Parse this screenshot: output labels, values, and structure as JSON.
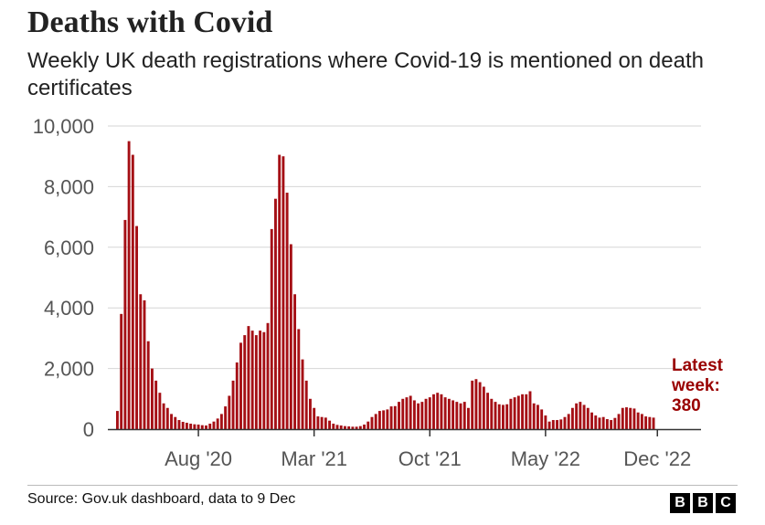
{
  "header": {
    "title": "Deaths with Covid",
    "subtitle": "Weekly UK death registrations where Covid-19 is mentioned on death certificates"
  },
  "footer": {
    "source": "Source: Gov.uk dashboard, data to 9 Dec",
    "logo": [
      "B",
      "B",
      "C"
    ]
  },
  "chart_data": {
    "type": "bar",
    "title": "Deaths with Covid",
    "subtitle": "Weekly UK death registrations where Covid-19 is mentioned on death certificates",
    "xlabel": "",
    "ylabel": "",
    "ylim": [
      0,
      10000
    ],
    "yticks": [
      0,
      2000,
      4000,
      6000,
      8000,
      10000
    ],
    "ytick_labels": [
      "0",
      "2,000",
      "4,000",
      "6,000",
      "8,000",
      "10,000"
    ],
    "xtick_labels": [
      {
        "label": "Aug '20",
        "index": 21
      },
      {
        "label": "Mar '21",
        "index": 51
      },
      {
        "label": "Oct '21",
        "index": 81
      },
      {
        "label": "May '22",
        "index": 111
      },
      {
        "label": "Dec '22",
        "index": 140
      }
    ],
    "grid": true,
    "bar_color": "#a50f15",
    "annotation": {
      "lines": [
        "Latest",
        "week:",
        "380"
      ],
      "color": "#990000"
    },
    "values": [
      600,
      3800,
      6900,
      9500,
      9050,
      6700,
      4450,
      4250,
      2900,
      2000,
      1600,
      1200,
      850,
      700,
      500,
      400,
      300,
      240,
      210,
      180,
      160,
      150,
      130,
      120,
      180,
      250,
      350,
      500,
      750,
      1100,
      1600,
      2200,
      2850,
      3100,
      3400,
      3250,
      3100,
      3250,
      3200,
      3500,
      6600,
      7600,
      9050,
      9000,
      7800,
      6100,
      4450,
      3300,
      2300,
      1600,
      1000,
      700,
      420,
      400,
      380,
      280,
      180,
      140,
      120,
      100,
      90,
      80,
      80,
      100,
      150,
      250,
      400,
      500,
      600,
      620,
      650,
      750,
      760,
      900,
      1000,
      1050,
      1100,
      950,
      850,
      900,
      1000,
      1050,
      1150,
      1200,
      1150,
      1050,
      1000,
      950,
      900,
      850,
      900,
      700,
      1600,
      1650,
      1550,
      1400,
      1200,
      1000,
      900,
      820,
      800,
      820,
      1000,
      1050,
      1100,
      1150,
      1150,
      1250,
      850,
      800,
      650,
      450,
      250,
      300,
      300,
      320,
      400,
      500,
      700,
      850,
      900,
      800,
      700,
      550,
      450,
      380,
      400,
      330,
      300,
      370,
      500,
      700,
      720,
      700,
      680,
      550,
      500,
      420,
      400,
      380
    ]
  }
}
